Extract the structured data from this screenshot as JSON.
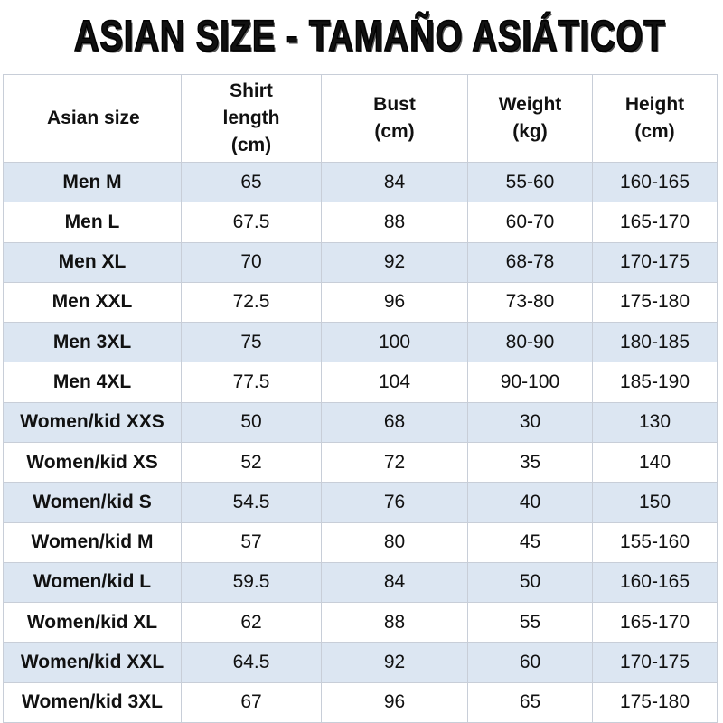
{
  "title": "ASIAN SIZE - TAMAÑO ASIÁTICOT",
  "table": {
    "header": [
      "Asian size",
      "Shirt length (cm)",
      "Bust (cm)",
      "Weight (kg)",
      "Height (cm)"
    ],
    "rows": [
      [
        "Men M",
        65,
        84,
        "55-60",
        "160-165"
      ],
      [
        "Men L",
        67.5,
        88,
        "60-70",
        "165-170"
      ],
      [
        "Men XL",
        70,
        92,
        "68-78",
        "170-175"
      ],
      [
        "Men XXL",
        72.5,
        96,
        "73-80",
        "175-180"
      ],
      [
        "Men 3XL",
        75,
        100,
        "80-90",
        "180-185"
      ],
      [
        "Men 4XL",
        77.5,
        104,
        "90-100",
        "185-190"
      ],
      [
        "Women/kid XXS",
        50,
        68,
        30,
        130
      ],
      [
        "Women/kid XS",
        52,
        72,
        35,
        140
      ],
      [
        "Women/kid S",
        54.5,
        76,
        40,
        150
      ],
      [
        "Women/kid M",
        57,
        80,
        45,
        "155-160"
      ],
      [
        "Women/kid L",
        59.5,
        84,
        50,
        "160-165"
      ],
      [
        "Women/kid XL",
        62,
        88,
        55,
        "165-170"
      ],
      [
        "Women/kid XXL",
        64.5,
        92,
        60,
        "170-175"
      ],
      [
        "Women/kid 3XL",
        67,
        96,
        65,
        "175-180"
      ]
    ]
  }
}
